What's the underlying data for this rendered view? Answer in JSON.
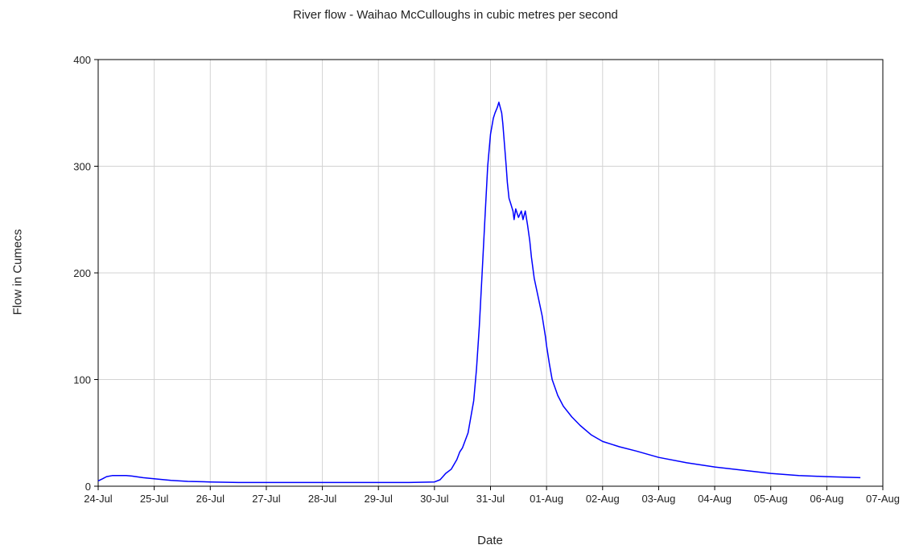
{
  "chart_data": {
    "type": "line",
    "title": "River flow - Waihao McCulloughs in cubic metres per second",
    "xlabel": "Date",
    "ylabel": "Flow in Cumecs",
    "xlim": [
      "24-Jul",
      "07-Aug"
    ],
    "ylim": [
      0,
      400
    ],
    "x_tick_labels": [
      "24-Jul",
      "25-Jul",
      "26-Jul",
      "27-Jul",
      "28-Jul",
      "29-Jul",
      "30-Jul",
      "31-Jul",
      "01-Aug",
      "02-Aug",
      "03-Aug",
      "04-Aug",
      "05-Aug",
      "06-Aug",
      "07-Aug"
    ],
    "y_tick_labels": [
      "0",
      "100",
      "200",
      "300",
      "400"
    ],
    "grid": true,
    "legend": "none",
    "series": [
      {
        "color": "#0000ff",
        "x_days": [
          0.0,
          0.08,
          0.15,
          0.25,
          0.4,
          0.5,
          0.6,
          0.8,
          1.0,
          1.3,
          1.6,
          2.0,
          2.5,
          3.0,
          4.0,
          5.0,
          5.5,
          6.0,
          6.1,
          6.15,
          6.2,
          6.3,
          6.4,
          6.45,
          6.5,
          6.6,
          6.7,
          6.75,
          6.8,
          6.85,
          6.9,
          6.95,
          7.0,
          7.05,
          7.08,
          7.12,
          7.15,
          7.2,
          7.22,
          7.25,
          7.28,
          7.3,
          7.33,
          7.36,
          7.4,
          7.42,
          7.45,
          7.5,
          7.55,
          7.58,
          7.62,
          7.66,
          7.7,
          7.73,
          7.78,
          7.82,
          7.86,
          7.9,
          7.92,
          7.95,
          7.98,
          8.0,
          8.05,
          8.1,
          8.2,
          8.3,
          8.45,
          8.6,
          8.8,
          9.0,
          9.3,
          9.6,
          10.0,
          10.5,
          11.0,
          11.5,
          12.0,
          12.5,
          13.0,
          13.6
        ],
        "y_values": [
          5,
          7,
          9,
          10,
          10,
          10,
          9.5,
          8,
          7,
          5.5,
          4.5,
          4,
          3.5,
          3.5,
          3.5,
          3.5,
          3.5,
          4,
          6,
          9,
          12,
          16,
          25,
          32,
          36,
          50,
          80,
          110,
          150,
          200,
          250,
          300,
          330,
          345,
          350,
          355,
          360,
          350,
          340,
          320,
          300,
          285,
          270,
          265,
          258,
          250,
          260,
          252,
          258,
          250,
          258,
          245,
          230,
          215,
          195,
          185,
          175,
          165,
          160,
          150,
          140,
          132,
          115,
          100,
          85,
          75,
          65,
          57,
          48,
          42,
          37,
          33,
          27,
          22,
          18,
          15,
          12,
          10,
          9,
          8
        ]
      }
    ]
  }
}
